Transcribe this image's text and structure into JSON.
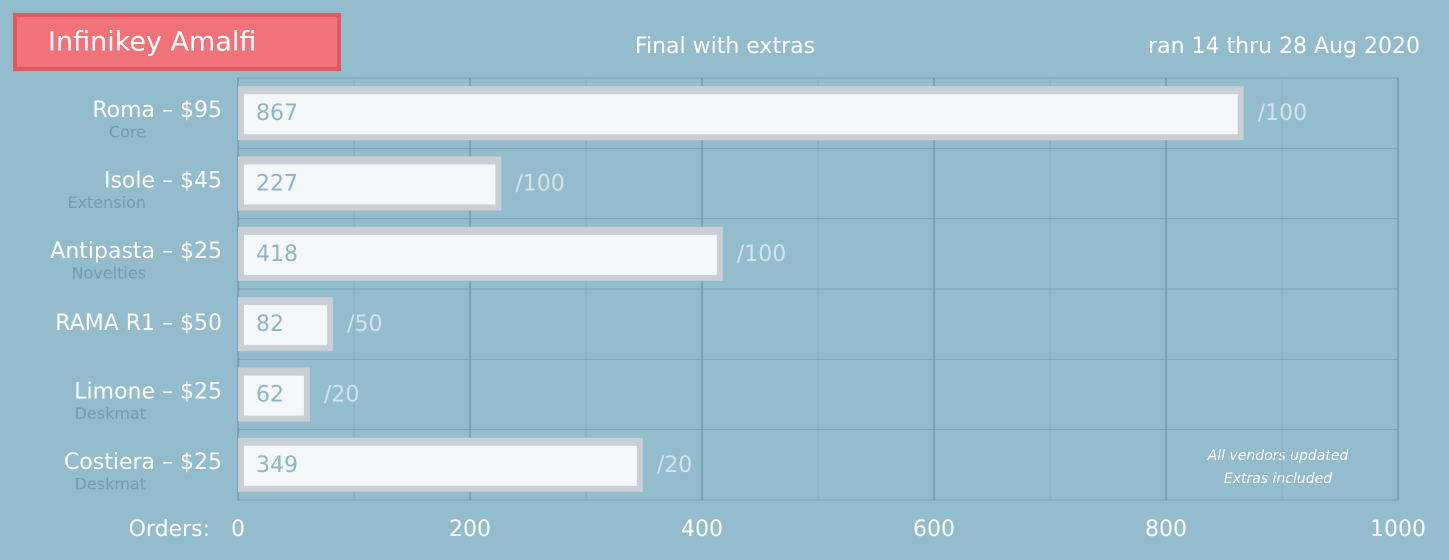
{
  "chart_data": {
    "type": "bar",
    "orientation": "horizontal",
    "title": "Infinikey Amalfi",
    "subtitle": "Final with extras",
    "date_note": "ran 14 thru 28 Aug 2020",
    "x_label": "Orders:",
    "categories": [
      "Roma – $95",
      "Isole – $45",
      "Antipasta – $25",
      "RAMA R1 – $50",
      "Limone – $25",
      "Costiera – $25"
    ],
    "category_groups": [
      "Core",
      "Extension",
      "Novelties",
      null,
      "Deskmat",
      "Deskmat"
    ],
    "values": [
      867,
      227,
      418,
      82,
      62,
      349
    ],
    "targets": [
      "/100",
      "/100",
      "/100",
      "/50",
      "/20",
      "/20"
    ],
    "color": "#f5f8fb",
    "xlim": [
      0,
      1000
    ],
    "xticks": [
      0,
      200,
      400,
      600,
      800,
      1000
    ],
    "minor_xticks": [
      100,
      300,
      500,
      700,
      900
    ],
    "grid": true,
    "annotations": [
      "All vendors updated",
      "Extras included"
    ]
  }
}
